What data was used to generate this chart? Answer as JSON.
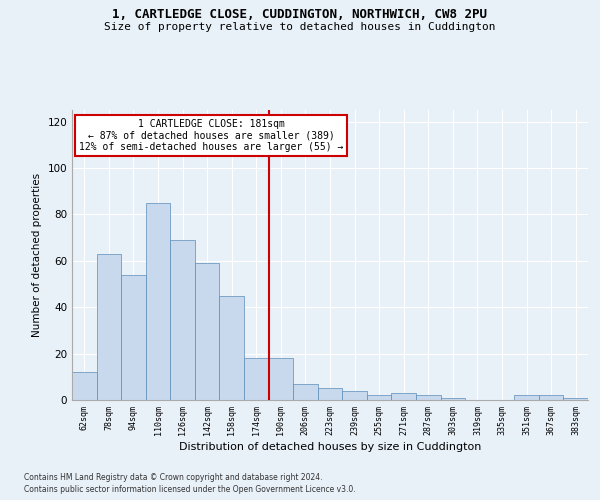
{
  "title1": "1, CARTLEDGE CLOSE, CUDDINGTON, NORTHWICH, CW8 2PU",
  "title2": "Size of property relative to detached houses in Cuddington",
  "xlabel": "Distribution of detached houses by size in Cuddington",
  "ylabel": "Number of detached properties",
  "categories": [
    "62sqm",
    "78sqm",
    "94sqm",
    "110sqm",
    "126sqm",
    "142sqm",
    "158sqm",
    "174sqm",
    "190sqm",
    "206sqm",
    "223sqm",
    "239sqm",
    "255sqm",
    "271sqm",
    "287sqm",
    "303sqm",
    "319sqm",
    "335sqm",
    "351sqm",
    "367sqm",
    "383sqm"
  ],
  "values": [
    12,
    63,
    54,
    85,
    69,
    59,
    45,
    18,
    18,
    7,
    5,
    4,
    2,
    3,
    2,
    1,
    0,
    0,
    2,
    2,
    1
  ],
  "bar_color": "#c9d9ed",
  "bar_edge_color": "#5b8db8",
  "background_color": "#e8f0f8",
  "grid_color": "#ffffff",
  "vline_color": "#cc0000",
  "annotation_text": "1 CARTLEDGE CLOSE: 181sqm\n← 87% of detached houses are smaller (389)\n12% of semi-detached houses are larger (55) →",
  "annotation_box_color": "#ffffff",
  "annotation_edge_color": "#cc0000",
  "footnote1": "Contains HM Land Registry data © Crown copyright and database right 2024.",
  "footnote2": "Contains public sector information licensed under the Open Government Licence v3.0.",
  "ylim": [
    0,
    125
  ],
  "yticks": [
    0,
    20,
    40,
    60,
    80,
    100,
    120
  ]
}
